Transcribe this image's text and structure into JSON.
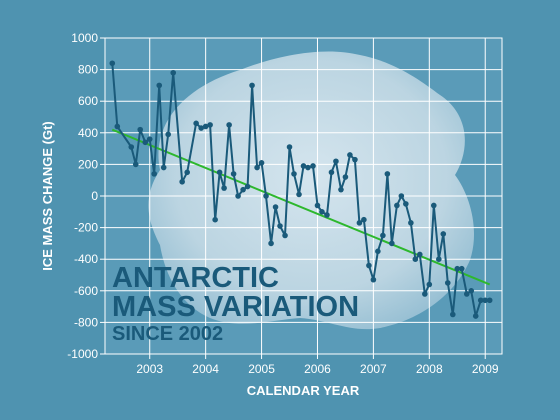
{
  "chart_data": {
    "type": "line",
    "title_lines": [
      "ANTARCTIC",
      "MASS VARIATION",
      "SINCE 2002"
    ],
    "xlabel": "CALENDAR YEAR",
    "ylabel": "ICE MASS CHANGE (Gt)",
    "xlim": [
      2002.2,
      2009.3
    ],
    "ylim": [
      -1000,
      1000
    ],
    "xticks": [
      "2003",
      "2004",
      "2005",
      "2006",
      "2007",
      "2008",
      "2009"
    ],
    "yticks": [
      "1000",
      "800",
      "600",
      "400",
      "200",
      "0",
      "-200",
      "-400",
      "-600",
      "-800",
      "-1000"
    ],
    "grid": true,
    "colors": {
      "series": "#1a5a7a",
      "trend": "#2db82d",
      "grid": "#ffffff",
      "background": "#4f93b0"
    },
    "series": [
      {
        "x": [
          2002.33,
          2002.42,
          2002.67,
          2002.75,
          2002.83,
          2002.92,
          2003.0,
          2003.08,
          2003.17,
          2003.25,
          2003.33,
          2003.42,
          2003.58,
          2003.67,
          2003.83,
          2003.92,
          2004.0,
          2004.08,
          2004.17,
          2004.25,
          2004.33,
          2004.42,
          2004.5,
          2004.58,
          2004.67,
          2004.75,
          2004.83,
          2004.92,
          2005.0,
          2005.08,
          2005.17,
          2005.25,
          2005.33,
          2005.42,
          2005.5,
          2005.58,
          2005.67,
          2005.75,
          2005.83,
          2005.92,
          2006.0,
          2006.08,
          2006.17,
          2006.25,
          2006.33,
          2006.42,
          2006.5,
          2006.58,
          2006.67,
          2006.75,
          2006.83,
          2006.92,
          2007.0,
          2007.08,
          2007.17,
          2007.25,
          2007.33,
          2007.42,
          2007.5,
          2007.58,
          2007.67,
          2007.75,
          2007.83,
          2007.92,
          2008.0,
          2008.08,
          2008.17,
          2008.25,
          2008.33,
          2008.42,
          2008.5,
          2008.58,
          2008.67,
          2008.75,
          2008.83,
          2008.92,
          2009.0,
          2009.08
        ],
        "values": [
          840,
          440,
          310,
          200,
          420,
          340,
          360,
          140,
          700,
          180,
          390,
          780,
          90,
          150,
          460,
          430,
          440,
          450,
          -150,
          150,
          50,
          450,
          140,
          0,
          40,
          60,
          700,
          180,
          210,
          0,
          -300,
          -70,
          -190,
          -250,
          310,
          140,
          10,
          190,
          180,
          190,
          -60,
          -100,
          -120,
          150,
          220,
          40,
          120,
          260,
          230,
          -170,
          -150,
          -440,
          -530,
          -350,
          -250,
          140,
          -300,
          -60,
          0,
          -50,
          -170,
          -400,
          -370,
          -620,
          -560,
          -60,
          -400,
          -240,
          -550,
          -750,
          -460,
          -460,
          -620,
          -600,
          -760,
          -660,
          -660,
          -660
        ]
      }
    ],
    "trend": {
      "x": [
        2002.33,
        2009.08
      ],
      "values": [
        420,
        -560
      ]
    }
  }
}
